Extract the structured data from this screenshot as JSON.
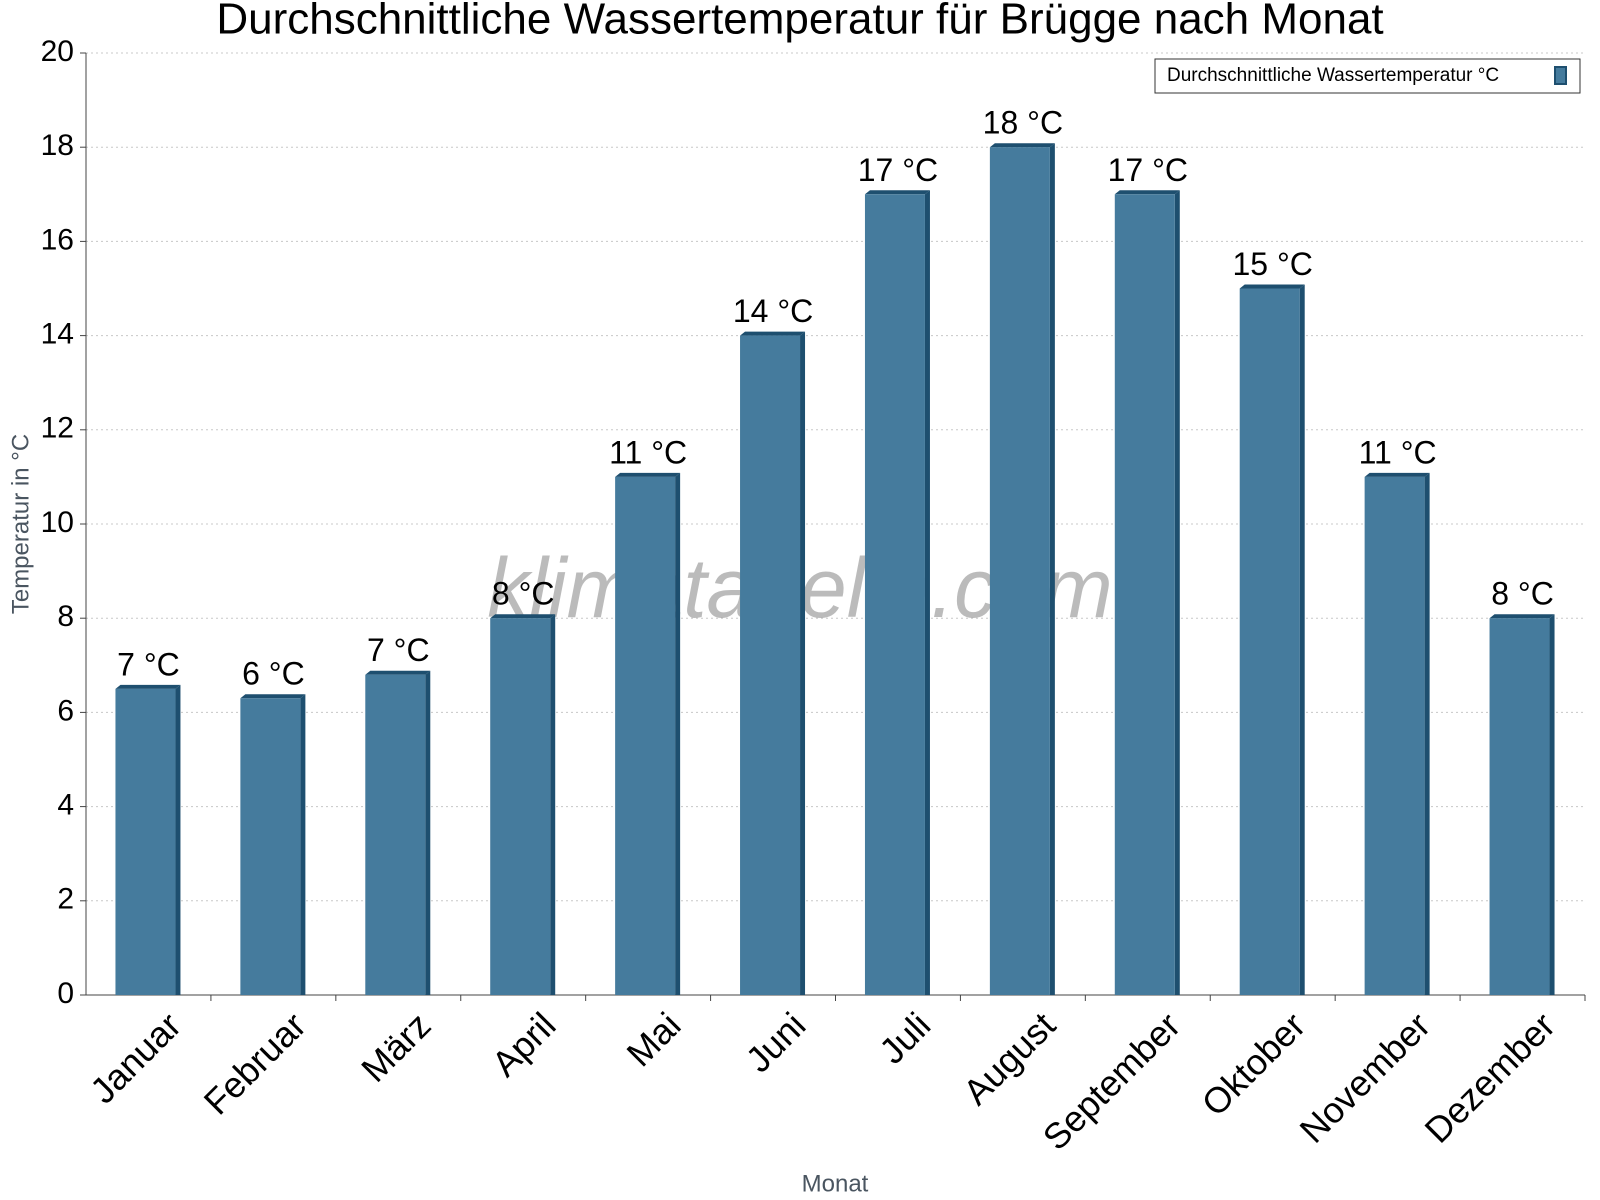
{
  "chart_data": {
    "type": "bar",
    "title": "Durchschnittliche Wassertemperatur für Brügge nach Monat",
    "x_label": "Monat",
    "y_label": "Temperatur in °C",
    "watermark": "klimatabelle.com",
    "categories": [
      "Januar",
      "Februar",
      "März",
      "April",
      "Mai",
      "Juni",
      "Juli",
      "August",
      "September",
      "Oktober",
      "November",
      "Dezember"
    ],
    "series": [
      {
        "name": "Durchschnittliche Wassertemperatur °C",
        "color": "#457b9d",
        "values": [
          6.5,
          6.3,
          6.8,
          8,
          11,
          14,
          17,
          18,
          17,
          15,
          11,
          8
        ],
        "value_labels": [
          "7 °C",
          "6 °C",
          "7 °C",
          "8 °C",
          "11 °C",
          "14 °C",
          "17 °C",
          "18 °C",
          "17 °C",
          "15 °C",
          "11 °C",
          "8 °C"
        ]
      }
    ],
    "ylim": [
      0,
      20
    ],
    "yticks": [
      0,
      2,
      4,
      6,
      8,
      10,
      12,
      14,
      16,
      18,
      20
    ],
    "grid": true,
    "legend": "top-right"
  }
}
